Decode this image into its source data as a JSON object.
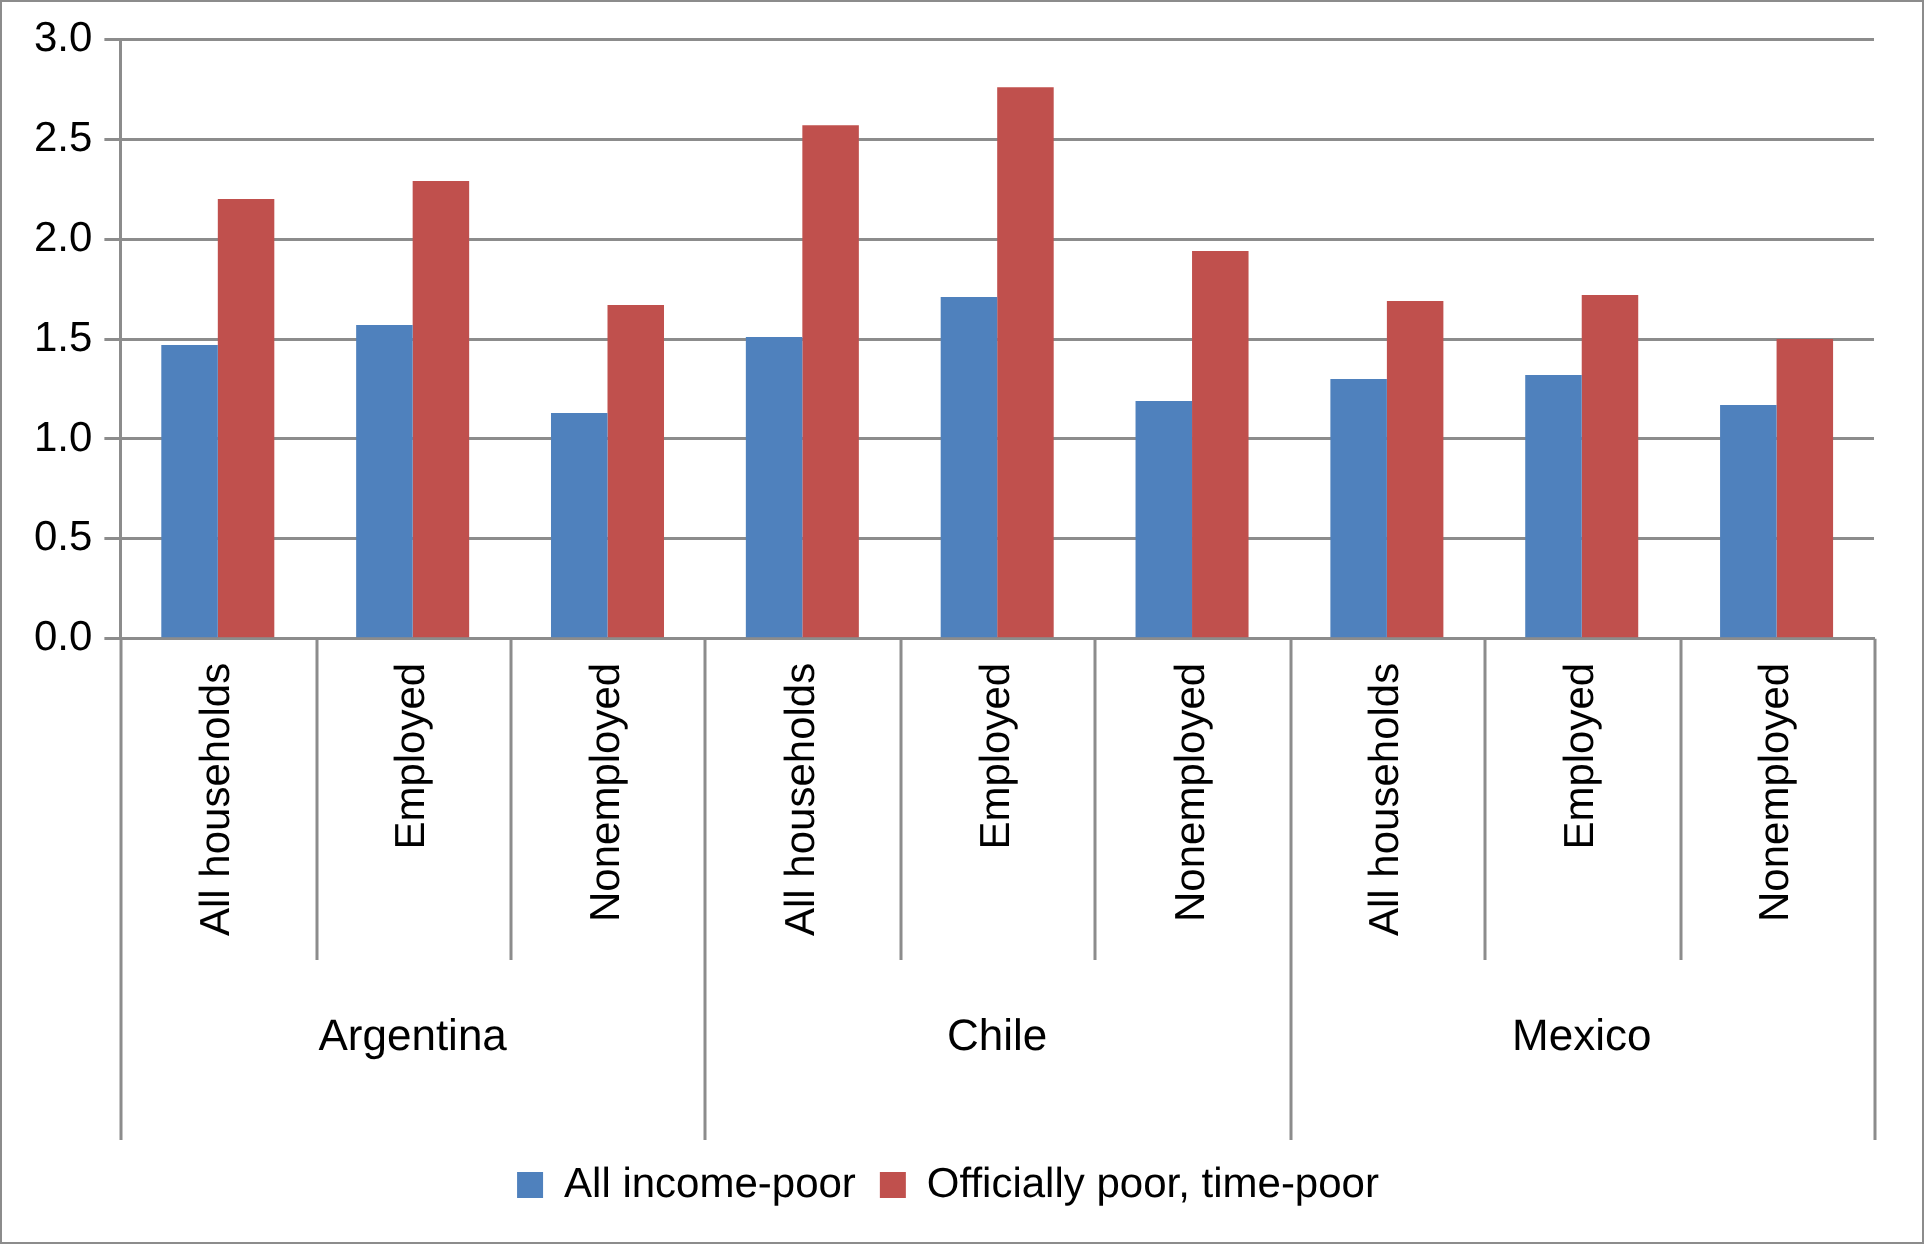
{
  "chart_data": {
    "type": "bar",
    "categories": [
      "All households",
      "Employed",
      "Nonemployed",
      "All households",
      "Employed",
      "Nonemployed",
      "All households",
      "Employed",
      "Nonemployed"
    ],
    "annotations": [
      "Argentina",
      "Chile",
      "Mexico"
    ],
    "series": [
      {
        "name": "All income-poor",
        "color": "#4f81bd",
        "values": [
          1.47,
          1.57,
          1.13,
          1.51,
          1.71,
          1.19,
          1.3,
          1.32,
          1.17
        ]
      },
      {
        "name": "Officially poor, time-poor",
        "color": "#c0504d",
        "values": [
          2.2,
          2.29,
          1.67,
          2.57,
          2.76,
          1.94,
          1.69,
          1.72,
          1.5
        ]
      }
    ],
    "ylim": [
      0,
      3
    ],
    "yticks": [
      {
        "value": 0,
        "label": "0.0"
      },
      {
        "value": 0.5,
        "label": "0.5"
      },
      {
        "value": 1,
        "label": "1.0"
      },
      {
        "value": 1.5,
        "label": "1.5"
      },
      {
        "value": 2,
        "label": "2.0"
      },
      {
        "value": 2.5,
        "label": "2.5"
      },
      {
        "value": 3,
        "label": "3.0"
      }
    ],
    "grid": "y",
    "legend": "bottom"
  }
}
